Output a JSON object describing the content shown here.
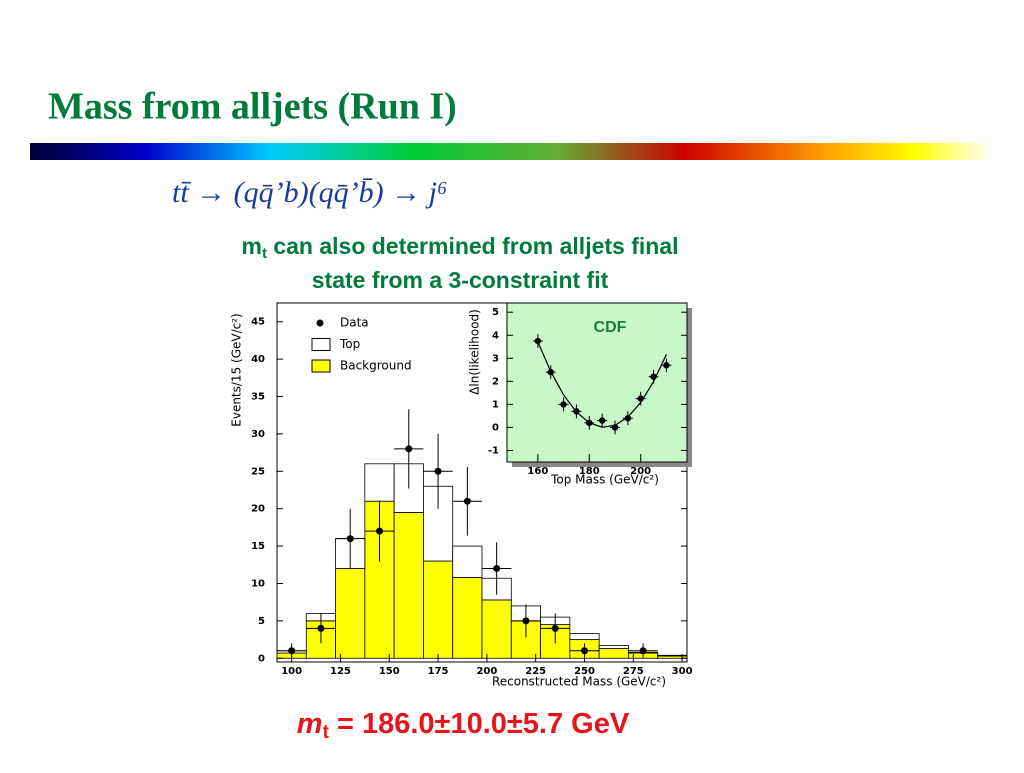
{
  "slide": {
    "title": "Mass from alljets (Run I)",
    "formula": "tt̄ → (qq̄’b)(qq̄’b̄) → j⁶",
    "subtitle": {
      "symbol": "m",
      "subscript": "t",
      "line1": " can also determined from alljets final",
      "line2": "state from a 3-constraint fit"
    },
    "result": {
      "symbol": "m",
      "subscript": "t",
      "text": " = 186.0±10.0±5.7 GeV"
    }
  },
  "chart_data": [
    {
      "type": "histogram",
      "stacked": true,
      "ylabel": "Events/15 (GeV/c²)",
      "xlabel": "Reconstructed Mass (GeV/c²)",
      "bins": [
        92.5,
        107.5,
        122.5,
        137.5,
        152.5,
        167.5,
        182.5,
        197.5,
        212.5,
        227.5,
        242.5,
        257.5,
        272.5,
        287.5,
        302.5
      ],
      "series": [
        {
          "name": "Background",
          "color": "#ffff00",
          "values": [
            0.7,
            5,
            12,
            21,
            19.5,
            13,
            10.8,
            7.8,
            5,
            4.5,
            2.5,
            1.3,
            0.7,
            0.3
          ]
        },
        {
          "name": "Top",
          "color": "#ffffff",
          "values": [
            0.3,
            1,
            4,
            5,
            6.5,
            10,
            4.2,
            2.9,
            2,
            1,
            0.8,
            0.4,
            0.1,
            0.1
          ]
        }
      ],
      "data": {
        "name": "Data",
        "color": "#000000",
        "x": [
          100,
          115,
          130,
          145,
          160,
          175,
          190,
          205,
          220,
          235,
          250,
          280
        ],
        "values": [
          1,
          4,
          16,
          17,
          28,
          25,
          21,
          12,
          5,
          4,
          1,
          1
        ],
        "errors": [
          1,
          2,
          4,
          4.1,
          5.3,
          5,
          4.6,
          3.5,
          2.2,
          2,
          1,
          1
        ]
      },
      "legend": "upper left",
      "xlim": [
        92.5,
        302.5
      ],
      "ylim": [
        -0.5,
        47.5
      ],
      "xticks": [
        100,
        125,
        150,
        175,
        200,
        225,
        250,
        275,
        300
      ],
      "yticks": [
        0,
        5,
        10,
        15,
        20,
        25,
        30,
        35,
        40,
        45
      ]
    },
    {
      "type": "scatter",
      "background": "#c8f7c8",
      "annotation": "CDF",
      "ylabel": "Δln(likelihood)",
      "xlabel": "Top Mass (GeV/c²)",
      "x": [
        160,
        165,
        170,
        175,
        180,
        185,
        190,
        195,
        200,
        205,
        210
      ],
      "values": [
        3.75,
        2.4,
        1.0,
        0.7,
        0.2,
        0.3,
        0,
        0.4,
        1.25,
        2.2,
        2.7
      ],
      "errors": [
        0.3,
        0.3,
        0.3,
        0.3,
        0.3,
        0.3,
        0.3,
        0.3,
        0.3,
        0.3,
        0.3
      ],
      "fit": {
        "x": [
          160,
          165,
          170,
          175,
          180,
          185,
          190,
          195,
          200,
          205,
          210
        ],
        "values": [
          3.72,
          2.43,
          1.41,
          0.67,
          0.2,
          0.01,
          0.09,
          0.45,
          1.08,
          1.99,
          3.17
        ]
      },
      "xlim": [
        148,
        218
      ],
      "ylim": [
        -1.5,
        5.4
      ],
      "xticks": [
        160,
        180,
        200
      ],
      "yticks": [
        -1,
        0,
        1,
        2,
        3,
        4,
        5
      ]
    }
  ]
}
